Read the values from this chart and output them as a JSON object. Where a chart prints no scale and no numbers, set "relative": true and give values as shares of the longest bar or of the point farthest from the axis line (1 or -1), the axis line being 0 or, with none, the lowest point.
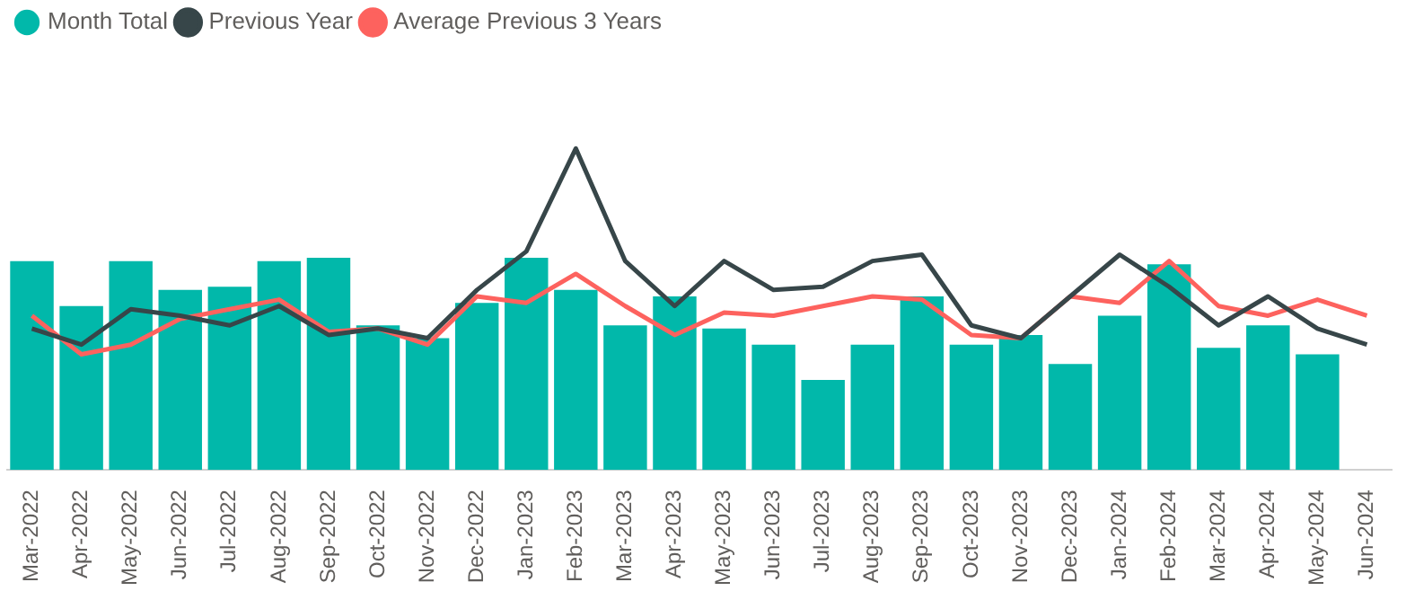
{
  "chart_data": {
    "type": "bar",
    "relative": true,
    "legend": "top left",
    "marker": "none",
    "line_style": "solid",
    "categories": [
      "Mar-2022",
      "Apr-2022",
      "May-2022",
      "Jun-2022",
      "Jul-2022",
      "Aug-2022",
      "Sep-2022",
      "Oct-2022",
      "Nov-2022",
      "Dec-2022",
      "Jan-2023",
      "Feb-2023",
      "Mar-2023",
      "Apr-2023",
      "May-2023",
      "Jun-2023",
      "Jul-2023",
      "Aug-2023",
      "Sep-2023",
      "Oct-2023",
      "Nov-2023",
      "Dec-2023",
      "Jan-2024",
      "Feb-2024",
      "Mar-2024",
      "Apr-2024",
      "May-2024",
      "Jun-2024"
    ],
    "series": [
      {
        "name": "Month Total",
        "type": "bar",
        "color": "#01b8aa",
        "values": [
          0.65,
          0.51,
          0.65,
          0.56,
          0.57,
          0.65,
          0.66,
          0.45,
          0.41,
          0.52,
          0.66,
          0.56,
          0.45,
          0.54,
          0.44,
          0.39,
          0.28,
          0.39,
          0.54,
          0.39,
          0.42,
          0.33,
          0.48,
          0.64,
          0.38,
          0.45,
          0.36,
          null
        ]
      },
      {
        "name": "Previous Year",
        "type": "line",
        "color": "#374649",
        "values": [
          0.44,
          0.39,
          0.5,
          0.48,
          0.45,
          0.51,
          0.42,
          0.44,
          0.41,
          0.56,
          0.68,
          1,
          0.65,
          0.51,
          0.65,
          0.56,
          0.57,
          0.65,
          0.67,
          0.45,
          0.41,
          0.54,
          0.67,
          0.57,
          0.45,
          0.54,
          0.44,
          0.39
        ]
      },
      {
        "name": "Average Previous 3 Years",
        "type": "line",
        "color": "#fd625e",
        "values": [
          0.48,
          0.36,
          0.39,
          0.47,
          0.5,
          0.53,
          0.43,
          0.44,
          0.39,
          0.54,
          0.52,
          0.61,
          0.51,
          0.42,
          0.49,
          0.48,
          0.51,
          0.54,
          0.53,
          0.42,
          0.41,
          0.54,
          0.52,
          0.65,
          0.51,
          0.48,
          0.53,
          0.48
        ]
      }
    ]
  }
}
